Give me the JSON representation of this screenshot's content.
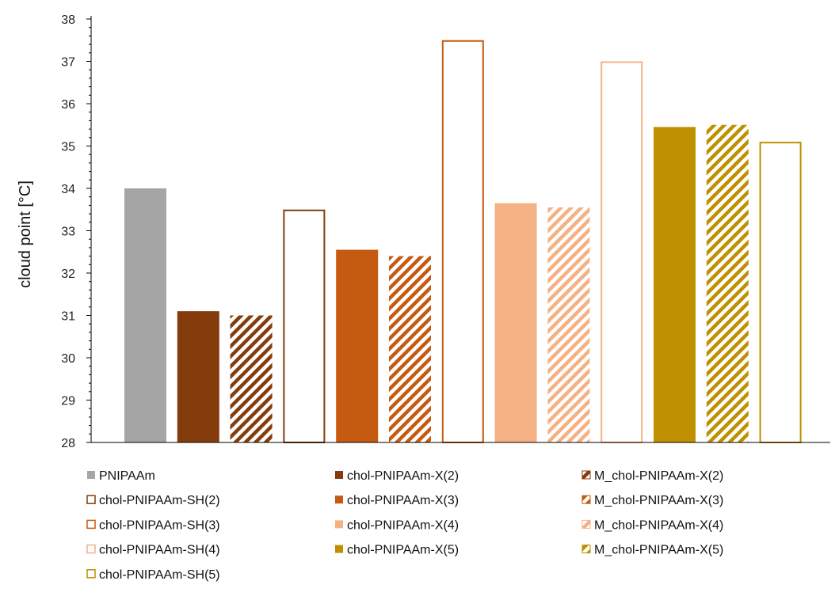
{
  "chart_data": {
    "type": "bar",
    "title": "",
    "xlabel": "",
    "ylabel": "cloud point [°C]",
    "ylim": [
      28,
      38
    ],
    "yticks": [
      28,
      29,
      30,
      31,
      32,
      33,
      34,
      35,
      36,
      37,
      38
    ],
    "grid": false,
    "legend_position": "bottom",
    "series": [
      {
        "name": "PNIPAAm",
        "value": 34.0,
        "color": "#a5a5a5",
        "style": "solid"
      },
      {
        "name": "chol-PNIPAAm-X(2)",
        "value": 31.1,
        "color": "#843c0c",
        "style": "solid"
      },
      {
        "name": "M_chol-PNIPAAm-X(2)",
        "value": 31.0,
        "color": "#843c0c",
        "style": "hatched"
      },
      {
        "name": "chol-PNIPAAm-SH(2)",
        "value": 33.5,
        "color": "#843c0c",
        "style": "outline"
      },
      {
        "name": "chol-PNIPAAm-X(3)",
        "value": 32.55,
        "color": "#c55a11",
        "style": "solid"
      },
      {
        "name": "M_chol-PNIPAAm-X(3)",
        "value": 32.4,
        "color": "#c55a11",
        "style": "hatched"
      },
      {
        "name": "chol-PNIPAAm-SH(3)",
        "value": 37.5,
        "color": "#c55a11",
        "style": "outline"
      },
      {
        "name": "chol-PNIPAAm-X(4)",
        "value": 33.65,
        "color": "#f4b183",
        "style": "solid"
      },
      {
        "name": "M_chol-PNIPAAm-X(4)",
        "value": 33.55,
        "color": "#f4b183",
        "style": "hatched"
      },
      {
        "name": "chol-PNIPAAm-SH(4)",
        "value": 37.0,
        "color": "#f4b183",
        "style": "outline"
      },
      {
        "name": "chol-PNIPAAm-X(5)",
        "value": 35.45,
        "color": "#bf9000",
        "style": "solid"
      },
      {
        "name": "M_chol-PNIPAAm-X(5)",
        "value": 35.5,
        "color": "#bf9000",
        "style": "hatched"
      },
      {
        "name": "chol-PNIPAAm-SH(5)",
        "value": 35.1,
        "color": "#bf9000",
        "style": "outline"
      }
    ],
    "legend_order": [
      0,
      1,
      2,
      3,
      4,
      5,
      6,
      7,
      8,
      9,
      10,
      11,
      12
    ]
  }
}
